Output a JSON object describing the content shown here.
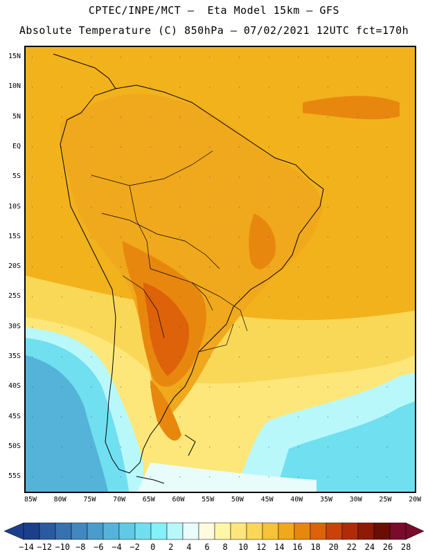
{
  "header": {
    "line1": "CPTEC/INPE/MCT –  Eta Model 15km – GFS",
    "line2": "Absolute Temperature (C) 850hPa – 07/02/2021 12UTC fct=170h"
  },
  "map": {
    "lat_labels": [
      "15N",
      "10N",
      "5N",
      "EQ",
      "5S",
      "10S",
      "15S",
      "20S",
      "25S",
      "30S",
      "35S",
      "40S",
      "45S",
      "50S",
      "55S"
    ],
    "lon_labels": [
      "85W",
      "80W",
      "75W",
      "70W",
      "65W",
      "60W",
      "55W",
      "50W",
      "45W",
      "40W",
      "35W",
      "30W",
      "25W",
      "20W"
    ],
    "region": "South America",
    "variable": "Absolute Temperature (C) at 850 hPa"
  },
  "legend": {
    "labels": [
      "-14",
      "-12",
      "-10",
      "-8",
      "-6",
      "-4",
      "-2",
      "0",
      "2",
      "4",
      "6",
      "8",
      "10",
      "12",
      "14",
      "16",
      "18",
      "20",
      "22",
      "24",
      "26",
      "28"
    ],
    "colors": [
      "#1c3f8c",
      "#2a5aa0",
      "#3672b0",
      "#4088bf",
      "#4a9ccc",
      "#55b3da",
      "#60c9e6",
      "#70dff0",
      "#84f0f8",
      "#b8f8fb",
      "#e8fcfb",
      "#fffbe0",
      "#fff6a8",
      "#fde77a",
      "#f9d858",
      "#f5c238",
      "#f0a81c",
      "#e8870e",
      "#dd620a",
      "#c94208",
      "#b02c06",
      "#8f1a05",
      "#6b0d03",
      "#7a0b2a"
    ]
  }
}
